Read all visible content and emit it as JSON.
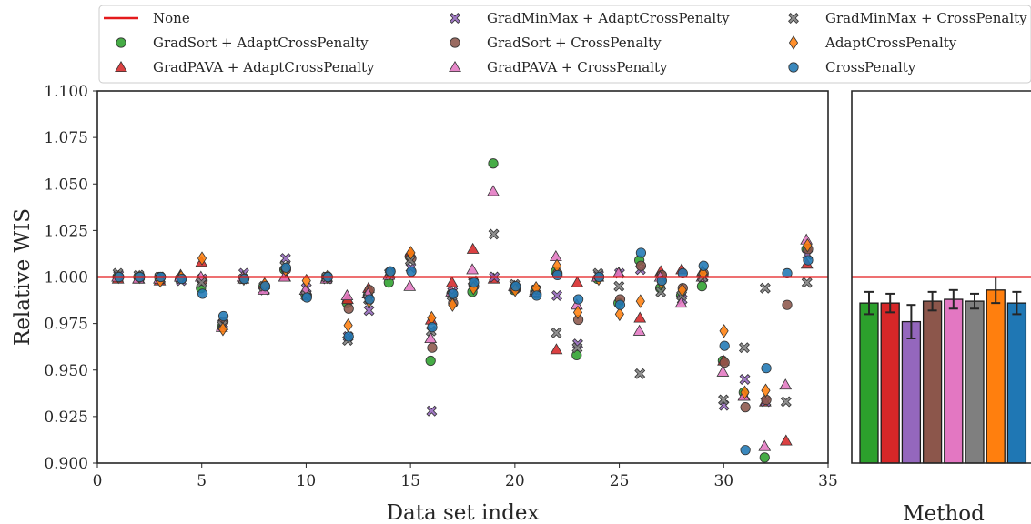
{
  "chart_data": [
    {
      "type": "scatter",
      "xlabel": "Data set index",
      "ylabel": "Relative WIS",
      "xlim": [
        0,
        35
      ],
      "ylim": [
        0.9,
        1.1
      ],
      "xticks": [
        0,
        5,
        10,
        15,
        20,
        25,
        30,
        35
      ],
      "yticks": [
        0.9,
        0.925,
        0.95,
        0.975,
        1.0,
        1.025,
        1.05,
        1.075,
        1.1
      ],
      "ytick_labels": [
        "0.900",
        "0.925",
        "0.950",
        "0.975",
        "1.000",
        "1.025",
        "1.050",
        "1.075",
        "1.100"
      ],
      "reference_line": {
        "name": "None",
        "y": 1.0,
        "color": "#e41a1c"
      },
      "grid": false,
      "legend_position": "top",
      "series": [
        {
          "name": "GradSort + AdaptCrossPenalty",
          "color": "#2ca02c",
          "marker": "circle",
          "x": [
            1,
            2,
            3,
            4,
            5,
            6,
            7,
            8,
            9,
            10,
            11,
            12,
            13,
            14,
            15,
            16,
            17,
            18,
            19,
            20,
            21,
            22,
            23,
            24,
            25,
            26,
            27,
            28,
            29,
            30,
            31,
            32,
            33,
            34
          ],
          "y": [
            1.0,
            1.0,
            1.0,
            0.999,
            0.994,
            0.973,
            0.999,
            0.995,
            1.004,
            0.991,
            1.0,
            0.986,
            0.99,
            0.997,
            1.011,
            0.955,
            0.991,
            0.992,
            1.061,
            0.993,
            0.992,
            1.003,
            0.958,
            0.999,
            0.986,
            1.009,
            0.994,
            0.99,
            0.995,
            0.955,
            0.938,
            0.903,
            null,
            1.015
          ]
        },
        {
          "name": "GradPAVA + AdaptCrossPenalty",
          "color": "#d62728",
          "marker": "triangle",
          "x": [
            1,
            2,
            3,
            4,
            5,
            6,
            7,
            8,
            9,
            10,
            11,
            12,
            13,
            14,
            15,
            16,
            17,
            18,
            19,
            20,
            21,
            22,
            23,
            24,
            25,
            26,
            27,
            28,
            29,
            30,
            31,
            32,
            33,
            34
          ],
          "y": [
            0.999,
            0.999,
            0.998,
            1.001,
            1.008,
            0.974,
            0.999,
            0.996,
            1.0,
            0.993,
            1.0,
            0.988,
            0.994,
            1.002,
            1.013,
            0.977,
            0.997,
            1.015,
            0.999,
            0.995,
            0.993,
            0.961,
            0.997,
            1.0,
            1.002,
            0.978,
            1.003,
            1.004,
            1.003,
            0.955,
            0.936,
            0.933,
            0.912,
            1.007
          ]
        },
        {
          "name": "GradMinMax + AdaptCrossPenalty",
          "color": "#9467bd",
          "marker": "x",
          "x": [
            1,
            2,
            3,
            4,
            5,
            6,
            7,
            8,
            9,
            10,
            11,
            12,
            13,
            14,
            15,
            16,
            17,
            18,
            19,
            20,
            21,
            22,
            23,
            24,
            25,
            26,
            27,
            28,
            29,
            30,
            31,
            32,
            33,
            34
          ],
          "y": [
            1.001,
            1.0,
            0.999,
            0.998,
            0.999,
            0.975,
            1.002,
            0.993,
            1.01,
            0.994,
            0.999,
            0.968,
            0.982,
            1.001,
            1.005,
            0.928,
            0.992,
            0.997,
            1.0,
            0.994,
            0.993,
            0.99,
            0.964,
            1.001,
            1.002,
            1.004,
            1.0,
            0.988,
            1.0,
            0.931,
            0.945,
            0.933,
            null,
            1.012
          ]
        },
        {
          "name": "GradSort + CrossPenalty",
          "color": "#8c564b",
          "marker": "circle",
          "x": [
            1,
            2,
            3,
            4,
            5,
            6,
            7,
            8,
            9,
            10,
            11,
            12,
            13,
            14,
            15,
            16,
            17,
            18,
            19,
            20,
            21,
            22,
            23,
            24,
            25,
            26,
            27,
            28,
            29,
            30,
            31,
            32,
            33,
            34
          ],
          "y": [
            1.0,
            1.0,
            1.0,
            0.999,
            0.998,
            0.976,
            0.999,
            0.995,
            1.004,
            0.99,
            1.0,
            0.983,
            0.993,
            1.003,
            1.01,
            0.962,
            0.986,
            0.995,
            null,
            0.994,
            0.991,
            1.002,
            0.977,
            1.0,
            0.988,
            1.006,
            1.001,
            0.994,
            1.002,
            0.954,
            0.93,
            0.934,
            0.985,
            1.015
          ]
        },
        {
          "name": "GradPAVA + CrossPenalty",
          "color": "#e377c2",
          "marker": "triangle",
          "x": [
            1,
            2,
            3,
            4,
            5,
            6,
            7,
            8,
            9,
            10,
            11,
            12,
            13,
            14,
            15,
            16,
            17,
            18,
            19,
            20,
            21,
            22,
            23,
            24,
            25,
            26,
            27,
            28,
            29,
            30,
            31,
            32,
            33,
            34
          ],
          "y": [
            1.0,
            0.999,
            0.999,
            1.0,
            1.0,
            0.973,
            1.0,
            0.993,
            1.0,
            0.993,
            0.999,
            0.99,
            0.991,
            1.001,
            0.995,
            0.967,
            0.992,
            1.004,
            1.046,
            0.995,
            0.992,
            1.011,
            0.985,
            1.0,
            1.002,
            0.971,
            1.0,
            0.986,
            1.0,
            0.949,
            0.936,
            0.909,
            0.942,
            1.02
          ]
        },
        {
          "name": "GradMinMax + CrossPenalty",
          "color": "#7f7f7f",
          "marker": "x",
          "x": [
            1,
            2,
            3,
            4,
            5,
            6,
            7,
            8,
            9,
            10,
            11,
            12,
            13,
            14,
            15,
            16,
            17,
            18,
            19,
            20,
            21,
            22,
            23,
            24,
            25,
            26,
            27,
            28,
            29,
            30,
            31,
            32,
            33,
            34
          ],
          "y": [
            1.002,
            1.001,
            1.0,
            0.999,
            0.997,
            0.974,
            0.999,
            0.995,
            1.006,
            0.99,
            1.0,
            0.966,
            0.988,
            1.002,
            1.009,
            0.971,
            0.99,
            0.998,
            1.023,
            0.996,
            0.993,
            0.97,
            0.962,
            1.002,
            0.995,
            0.948,
            0.992,
            0.99,
            1.0,
            0.934,
            0.962,
            0.994,
            0.933,
            0.997
          ]
        },
        {
          "name": "AdaptCrossPenalty",
          "color": "#ff7f0e",
          "marker": "diamond",
          "x": [
            1,
            2,
            3,
            4,
            5,
            6,
            7,
            8,
            9,
            10,
            11,
            12,
            13,
            14,
            15,
            16,
            17,
            18,
            19,
            20,
            21,
            22,
            23,
            24,
            25,
            26,
            27,
            28,
            29,
            30,
            31,
            32,
            33,
            34
          ],
          "y": [
            1.0,
            1.0,
            0.998,
            1.0,
            1.01,
            0.972,
            0.999,
            0.996,
            1.004,
            0.998,
            1.0,
            0.974,
            0.987,
            1.002,
            1.013,
            0.978,
            0.985,
            0.994,
            null,
            0.993,
            0.994,
            1.006,
            0.981,
            0.999,
            0.98,
            0.987,
            0.997,
            0.993,
            1.002,
            0.971,
            0.938,
            0.939,
            null,
            1.017
          ]
        },
        {
          "name": "CrossPenalty",
          "color": "#1f77b4",
          "marker": "circle",
          "x": [
            1,
            2,
            3,
            4,
            5,
            6,
            7,
            8,
            9,
            10,
            11,
            12,
            13,
            14,
            15,
            16,
            17,
            18,
            19,
            20,
            21,
            22,
            23,
            24,
            25,
            26,
            27,
            28,
            29,
            30,
            31,
            32,
            33,
            34
          ],
          "y": [
            1.0,
            1.0,
            1.0,
            0.999,
            0.991,
            0.979,
            0.999,
            0.995,
            1.005,
            0.989,
            1.0,
            0.968,
            0.988,
            1.003,
            1.003,
            0.973,
            0.991,
            0.997,
            null,
            0.995,
            0.99,
            1.001,
            0.988,
            1.0,
            0.985,
            1.013,
            0.998,
            1.002,
            1.006,
            0.963,
            0.907,
            0.951,
            1.002,
            1.009
          ]
        }
      ]
    },
    {
      "type": "bar",
      "xlabel": "Method",
      "ylabel": "",
      "ylim": [
        0.9,
        1.1
      ],
      "reference_line": {
        "y": 1.0,
        "color": "#e41a1c"
      },
      "categories": [
        "GradSort + AdaptCrossPenalty",
        "GradPAVA + AdaptCrossPenalty",
        "GradMinMax + AdaptCrossPenalty",
        "GradSort + CrossPenalty",
        "GradPAVA + CrossPenalty",
        "GradMinMax + CrossPenalty",
        "AdaptCrossPenalty",
        "CrossPenalty"
      ],
      "colors": [
        "#2ca02c",
        "#d62728",
        "#9467bd",
        "#8c564b",
        "#e377c2",
        "#7f7f7f",
        "#ff7f0e",
        "#1f77b4"
      ],
      "values": [
        0.986,
        0.986,
        0.976,
        0.987,
        0.988,
        0.987,
        0.993,
        0.986
      ],
      "errors": [
        0.006,
        0.005,
        0.009,
        0.005,
        0.005,
        0.004,
        0.007,
        0.006
      ]
    }
  ]
}
